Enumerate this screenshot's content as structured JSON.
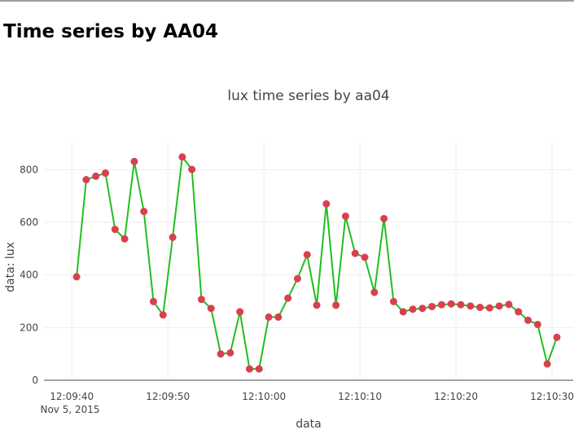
{
  "page": {
    "title": "Time series by AA04"
  },
  "colors": {
    "line": "#1fbf1f",
    "marker": "#d9404f",
    "grid": "#eeeeee",
    "axis": "#444444",
    "text": "#444444"
  },
  "chart_data": {
    "type": "line",
    "title": "lux time series by aa04",
    "xlabel": "data",
    "ylabel": "data: lux",
    "x_date_label": "Nov 5, 2015",
    "x_tick_labels": [
      "12:09:40",
      "12:09:50",
      "12:10:00",
      "12:10:10",
      "12:10:20",
      "12:10:30"
    ],
    "x_tick_seconds": [
      40,
      50,
      60,
      70,
      80,
      90
    ],
    "xlim_seconds": [
      37.1,
      92.2
    ],
    "y_tick_values": [
      0,
      200,
      400,
      600,
      800
    ],
    "y_tick_labels": [
      "0",
      "200",
      "400",
      "600",
      "800"
    ],
    "ylim": [
      0,
      900
    ],
    "grid": true,
    "legend": "none",
    "x_start_time": "12:09:00",
    "series": [
      {
        "mode": "lines+markers",
        "x_seconds": [
          40.5,
          41.5,
          42.5,
          43.5,
          44.5,
          45.5,
          46.5,
          47.5,
          48.5,
          49.5,
          50.5,
          51.5,
          52.5,
          53.5,
          54.5,
          55.5,
          56.5,
          57.5,
          58.5,
          59.5,
          60.5,
          61.5,
          62.5,
          63.5,
          64.5,
          65.5,
          66.5,
          67.5,
          68.5,
          69.5,
          70.5,
          71.5,
          72.5,
          73.5,
          74.5,
          75.5,
          76.5,
          77.5,
          78.5,
          79.5,
          80.5,
          81.5,
          82.5,
          83.5,
          84.5,
          85.5,
          86.5,
          87.5,
          88.5,
          89.5,
          90.5
        ],
        "y": [
          393,
          762,
          775,
          787,
          573,
          537,
          831,
          641,
          299,
          248,
          543,
          848,
          801,
          307,
          273,
          100,
          104,
          260,
          43,
          43,
          240,
          240,
          312,
          386,
          477,
          285,
          670,
          285,
          623,
          482,
          467,
          334,
          614,
          299,
          260,
          270,
          273,
          280,
          287,
          290,
          287,
          282,
          277,
          275,
          282,
          288,
          260,
          228,
          212,
          62,
          163
        ]
      }
    ]
  }
}
